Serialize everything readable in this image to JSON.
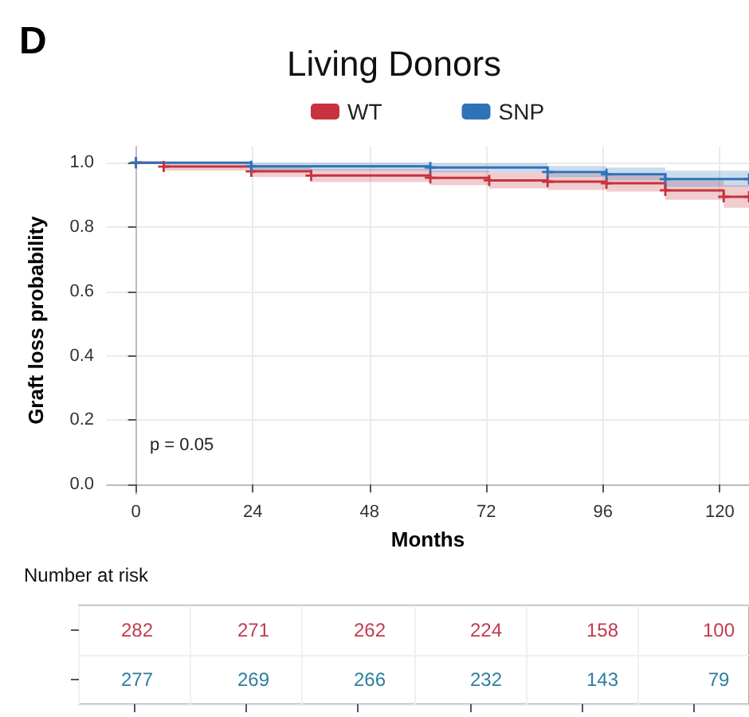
{
  "chart_data": [
    {
      "type": "step",
      "title": "Living Donors",
      "xlabel": "Months",
      "ylabel": "Graft loss probability",
      "annotations": [
        "D",
        "p = 0.05"
      ],
      "legend": "top",
      "grid": true,
      "marker": "cross",
      "xlim": [
        -6,
        126
      ],
      "xticks": [
        0,
        24,
        48,
        72,
        96,
        120
      ],
      "ylim": [
        -0.03,
        1.05
      ],
      "yticks": [
        {
          "value": 0,
          "label": "0.0"
        },
        {
          "value": 0.2,
          "label": "0.2"
        },
        {
          "value": 0.4,
          "label": "0.4"
        },
        {
          "value": 0.6,
          "label": "0.6"
        },
        {
          "value": 0.8,
          "label": "0.8"
        },
        {
          "value": 1,
          "label": "1.0"
        }
      ],
      "series": [
        {
          "name": "WT",
          "color": "#c8323f",
          "x": [
            0,
            5.7,
            23.7,
            36,
            60.5,
            72.6,
            84.6,
            96.7,
            108.8,
            120.8,
            126
          ],
          "values": [
            1,
            0.988,
            0.973,
            0.96,
            0.953,
            0.945,
            0.941,
            0.936,
            0.914,
            0.894,
            0.894
          ],
          "lower": [
            1,
            0.975,
            0.955,
            0.94,
            0.93,
            0.92,
            0.915,
            0.91,
            0.885,
            0.86,
            0.86
          ],
          "upper": [
            1,
            1,
            0.99,
            0.98,
            0.975,
            0.97,
            0.965,
            0.96,
            0.945,
            0.93,
            0.93
          ]
        },
        {
          "name": "SNP",
          "color": "#2f72b8",
          "x": [
            0,
            23.7,
            60.5,
            84.6,
            96.7,
            108.8,
            126
          ],
          "values": [
            1,
            0.989,
            0.985,
            0.971,
            0.964,
            0.949,
            0.949
          ],
          "lower": [
            1,
            0.975,
            0.97,
            0.955,
            0.945,
            0.925,
            0.92
          ],
          "upper": [
            1,
            1,
            0.998,
            0.99,
            0.985,
            0.975,
            0.975
          ]
        }
      ]
    },
    {
      "type": "other",
      "title": "Number at risk",
      "annotations": [
        "282",
        "271",
        "262",
        "224",
        "158",
        "100",
        "277",
        "269",
        "266",
        "232",
        "143",
        "79"
      ]
    }
  ]
}
